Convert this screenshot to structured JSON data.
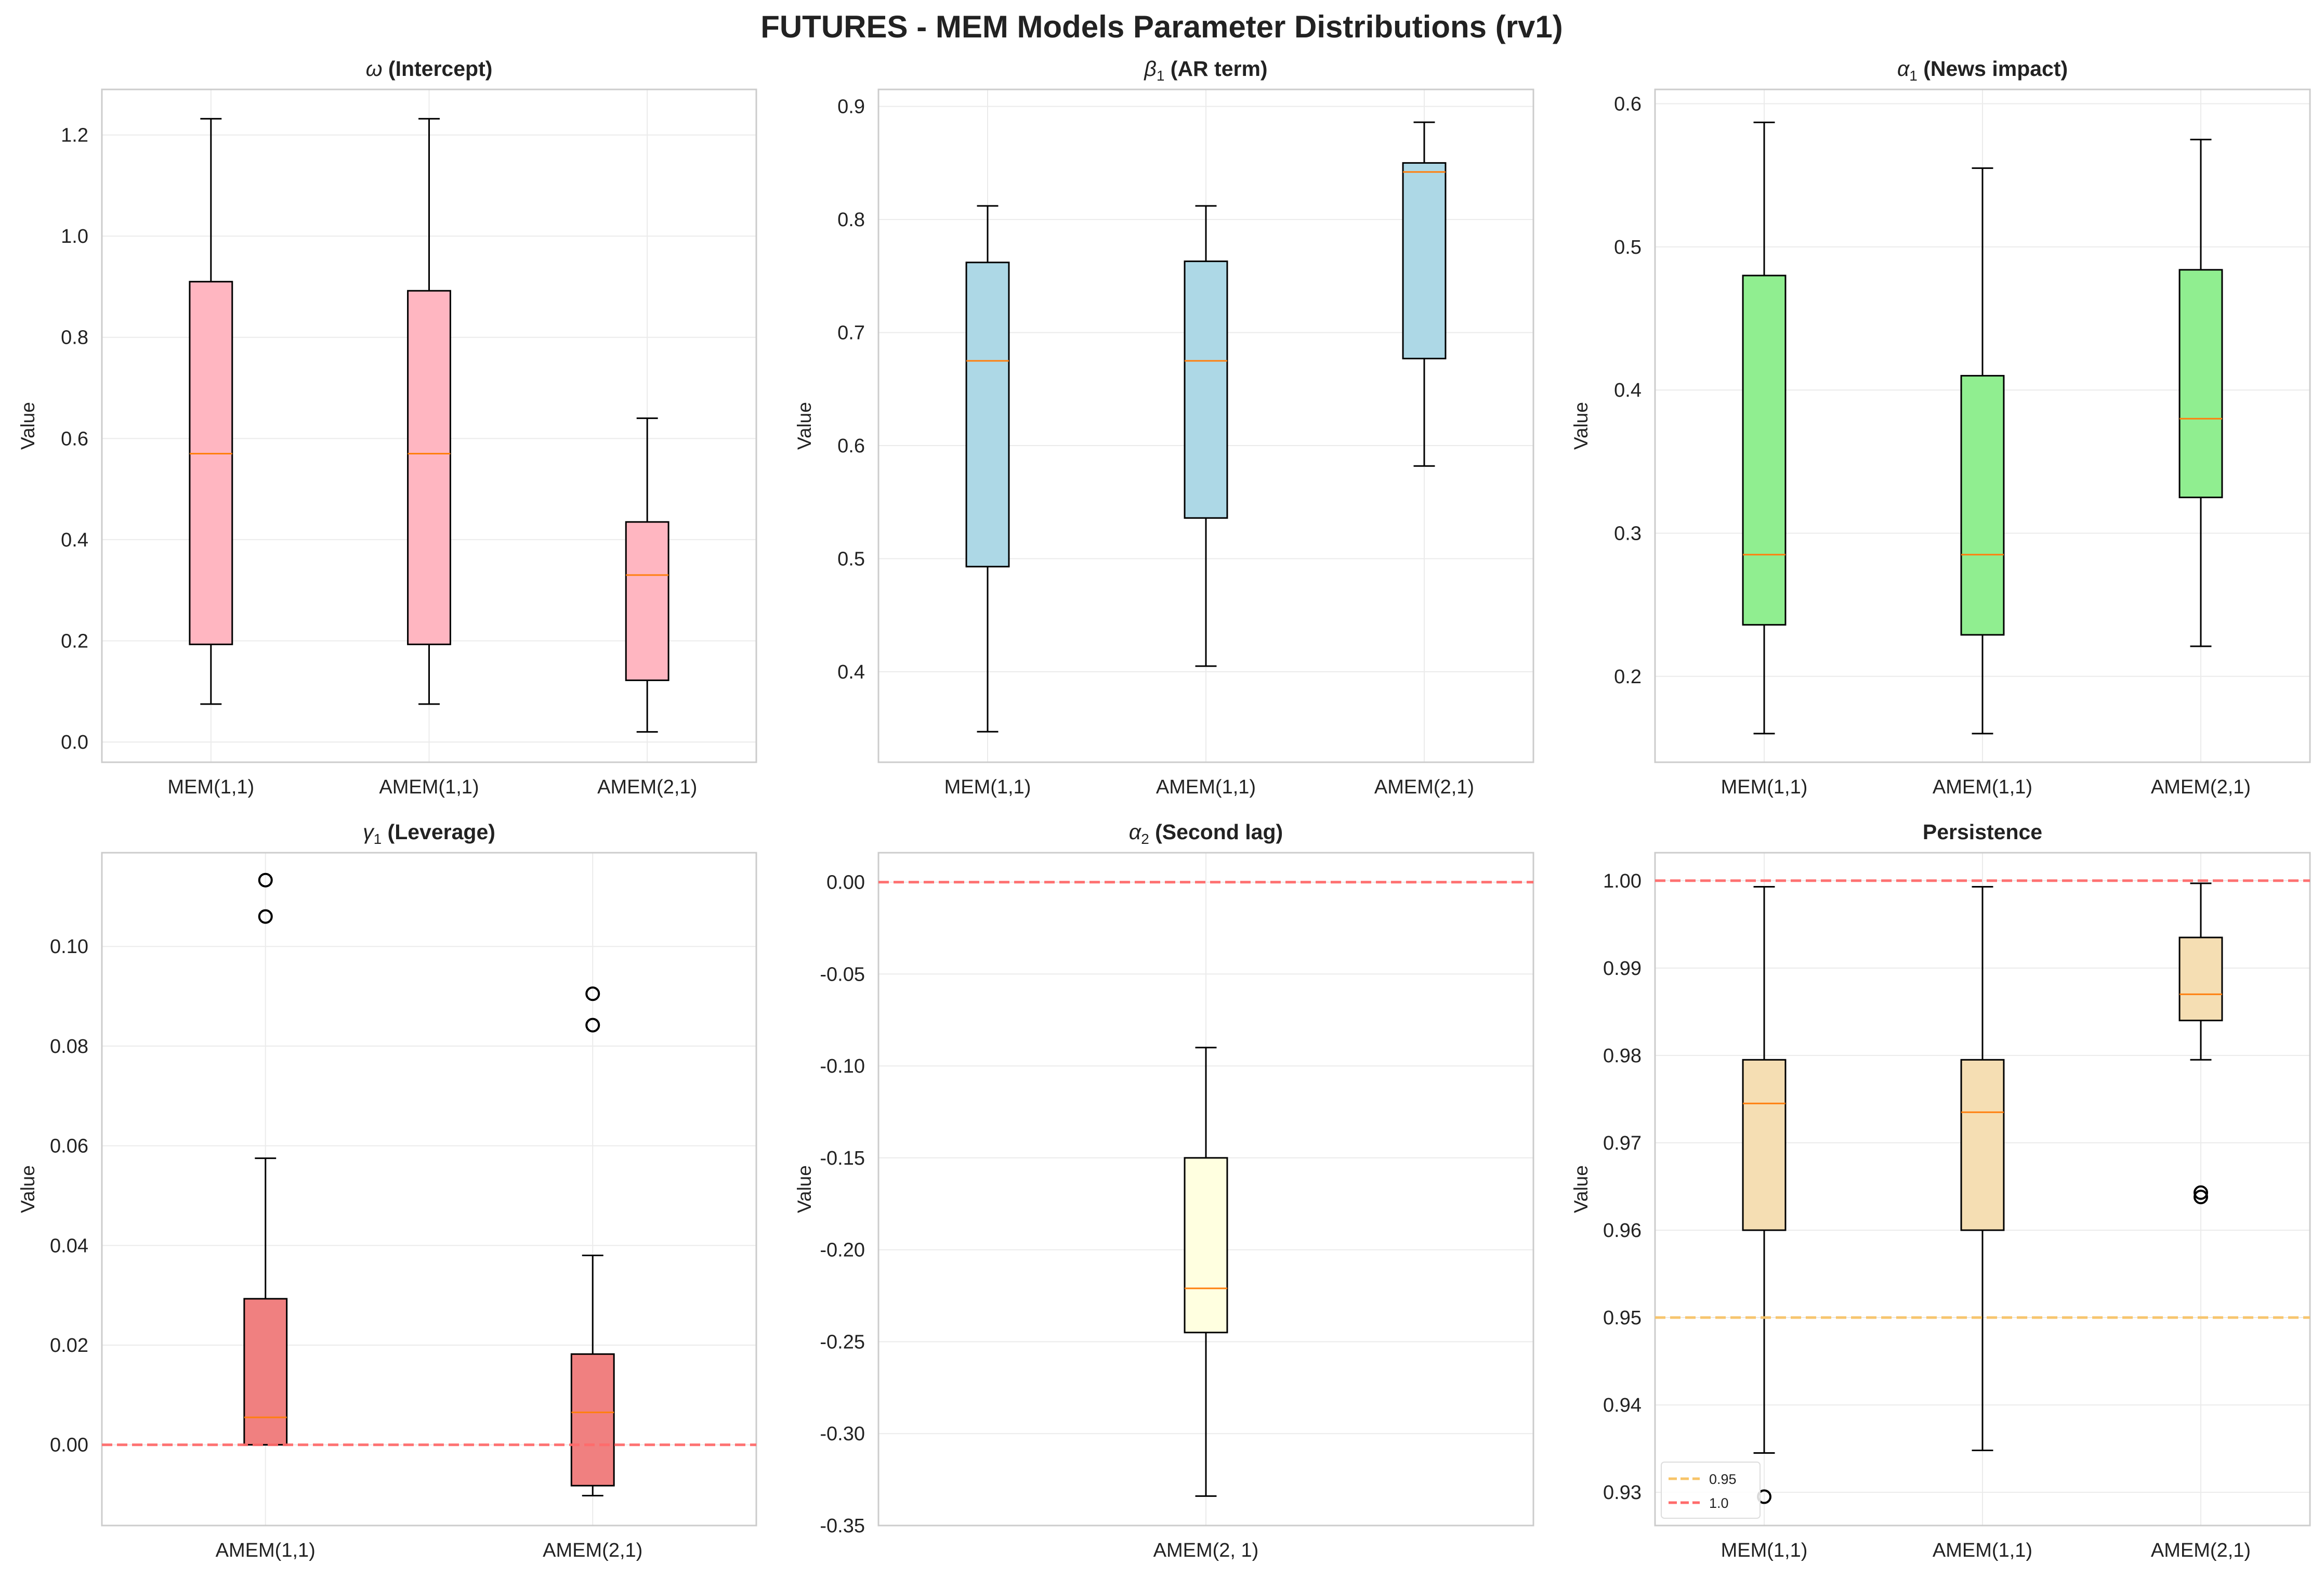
{
  "title": "FUTURES - MEM Models Parameter Distributions (rv1)",
  "colors": {
    "grid": "#ebebeb",
    "spine": "#cccccc",
    "median": "#ff7f0e",
    "whisker": "#000000",
    "ref_red": "#ff6b6b",
    "ref_orange": "#f7c468"
  },
  "chart_data": [
    {
      "type": "box",
      "title_symbol": "ω",
      "title_sub": "",
      "title_text": "(Intercept)",
      "ylabel": "Value",
      "ylim": [
        -0.04,
        1.29
      ],
      "yticks": [
        0.0,
        0.2,
        0.4,
        0.6,
        0.8,
        1.0,
        1.2
      ],
      "ytick_labels": [
        "0.0",
        "0.2",
        "0.4",
        "0.6",
        "0.8",
        "1.0",
        "1.2"
      ],
      "fill": "#ffb6c1",
      "categories": [
        "MEM(1,1)",
        "AMEM(1,1)",
        "AMEM(2,1)"
      ],
      "boxes": [
        {
          "whislo": 0.075,
          "q1": 0.193,
          "med": 0.57,
          "q3": 0.91,
          "whishi": 1.232,
          "fliers": []
        },
        {
          "whislo": 0.075,
          "q1": 0.193,
          "med": 0.57,
          "q3": 0.892,
          "whishi": 1.232,
          "fliers": []
        },
        {
          "whislo": 0.02,
          "q1": 0.122,
          "med": 0.33,
          "q3": 0.435,
          "whishi": 0.64,
          "fliers": []
        }
      ],
      "hlines": []
    },
    {
      "type": "box",
      "title_symbol": "β",
      "title_sub": "1",
      "title_text": "(AR term)",
      "ylabel": "Value",
      "ylim": [
        0.32,
        0.915
      ],
      "yticks": [
        0.4,
        0.5,
        0.6,
        0.7,
        0.8,
        0.9
      ],
      "ytick_labels": [
        "0.4",
        "0.5",
        "0.6",
        "0.7",
        "0.8",
        "0.9"
      ],
      "fill": "#add8e6",
      "categories": [
        "MEM(1,1)",
        "AMEM(1,1)",
        "AMEM(2,1)"
      ],
      "boxes": [
        {
          "whislo": 0.347,
          "q1": 0.493,
          "med": 0.675,
          "q3": 0.762,
          "whishi": 0.812,
          "fliers": []
        },
        {
          "whislo": 0.405,
          "q1": 0.536,
          "med": 0.675,
          "q3": 0.763,
          "whishi": 0.812,
          "fliers": []
        },
        {
          "whislo": 0.582,
          "q1": 0.677,
          "med": 0.842,
          "q3": 0.85,
          "whishi": 0.886,
          "fliers": []
        }
      ],
      "hlines": []
    },
    {
      "type": "box",
      "title_symbol": "α",
      "title_sub": "1",
      "title_text": "(News impact)",
      "ylabel": "Value",
      "ylim": [
        0.14,
        0.61
      ],
      "yticks": [
        0.2,
        0.3,
        0.4,
        0.5,
        0.6
      ],
      "ytick_labels": [
        "0.2",
        "0.3",
        "0.4",
        "0.5",
        "0.6"
      ],
      "fill": "#90ee90",
      "categories": [
        "MEM(1,1)",
        "AMEM(1,1)",
        "AMEM(2,1)"
      ],
      "boxes": [
        {
          "whislo": 0.16,
          "q1": 0.236,
          "med": 0.285,
          "q3": 0.48,
          "whishi": 0.587,
          "fliers": []
        },
        {
          "whislo": 0.16,
          "q1": 0.229,
          "med": 0.285,
          "q3": 0.41,
          "whishi": 0.555,
          "fliers": []
        },
        {
          "whislo": 0.221,
          "q1": 0.325,
          "med": 0.38,
          "q3": 0.484,
          "whishi": 0.575,
          "fliers": []
        }
      ],
      "hlines": []
    },
    {
      "type": "box",
      "title_symbol": "γ",
      "title_sub": "1",
      "title_text": "(Leverage)",
      "ylabel": "Value",
      "ylim": [
        -0.0162,
        0.1188
      ],
      "yticks": [
        0.0,
        0.02,
        0.04,
        0.06,
        0.08,
        0.1
      ],
      "ytick_labels": [
        "0.00",
        "0.02",
        "0.04",
        "0.06",
        "0.08",
        "0.10"
      ],
      "fill": "#f08080",
      "categories": [
        "AMEM(1,1)",
        "AMEM(2,1)"
      ],
      "boxes": [
        {
          "whislo": 0.0,
          "q1": 0.0,
          "med": 0.0055,
          "q3": 0.0293,
          "whishi": 0.0575,
          "fliers": [
            0.106,
            0.1133
          ]
        },
        {
          "whislo": -0.0102,
          "q1": -0.0082,
          "med": 0.0065,
          "q3": 0.0182,
          "whishi": 0.038,
          "fliers": [
            0.0842,
            0.0905
          ]
        }
      ],
      "hlines": [
        {
          "y": 0.0,
          "color": "#ff6b6b"
        }
      ]
    },
    {
      "type": "box",
      "title_symbol": "α",
      "title_sub": "2",
      "title_text": "(Second lag)",
      "ylabel": "Value",
      "ylim": [
        -0.35,
        0.016
      ],
      "yticks": [
        -0.35,
        -0.3,
        -0.25,
        -0.2,
        -0.15,
        -0.1,
        -0.05,
        0.0
      ],
      "ytick_labels": [
        "-0.35",
        "-0.30",
        "-0.25",
        "-0.20",
        "-0.15",
        "-0.10",
        "-0.05",
        "0.00"
      ],
      "fill": "#ffffe0",
      "categories": [
        "AMEM(2, 1)"
      ],
      "boxes": [
        {
          "whislo": -0.334,
          "q1": -0.245,
          "med": -0.221,
          "q3": -0.15,
          "whishi": -0.09,
          "fliers": []
        }
      ],
      "hlines": [
        {
          "y": 0.0,
          "color": "#ff6b6b"
        }
      ]
    },
    {
      "type": "box",
      "title_symbol": "",
      "title_sub": "",
      "title_text": "Persistence",
      "ylabel": "Value",
      "ylim": [
        0.9262,
        1.0032
      ],
      "yticks": [
        0.93,
        0.94,
        0.95,
        0.96,
        0.97,
        0.98,
        0.99,
        1.0
      ],
      "ytick_labels": [
        "0.93",
        "0.94",
        "0.95",
        "0.96",
        "0.97",
        "0.98",
        "0.99",
        "1.00"
      ],
      "fill": "#f5deb3",
      "categories": [
        "MEM(1,1)",
        "AMEM(1,1)",
        "AMEM(2,1)"
      ],
      "boxes": [
        {
          "whislo": 0.9345,
          "q1": 0.96,
          "med": 0.9745,
          "q3": 0.9795,
          "whishi": 0.9993,
          "fliers": [
            0.9295
          ]
        },
        {
          "whislo": 0.9348,
          "q1": 0.96,
          "med": 0.9735,
          "q3": 0.9795,
          "whishi": 0.9993,
          "fliers": []
        },
        {
          "whislo": 0.9795,
          "q1": 0.984,
          "med": 0.987,
          "q3": 0.9935,
          "whishi": 0.9997,
          "fliers": [
            0.9638,
            0.9643
          ]
        }
      ],
      "hlines": [
        {
          "y": 0.95,
          "color": "#f7c468"
        },
        {
          "y": 1.0,
          "color": "#ff6b6b"
        }
      ],
      "legend": {
        "placement": "lower-left",
        "entries": [
          {
            "label": "0.95",
            "color": "#f7c468"
          },
          {
            "label": "1.0",
            "color": "#ff6b6b"
          }
        ]
      }
    }
  ]
}
